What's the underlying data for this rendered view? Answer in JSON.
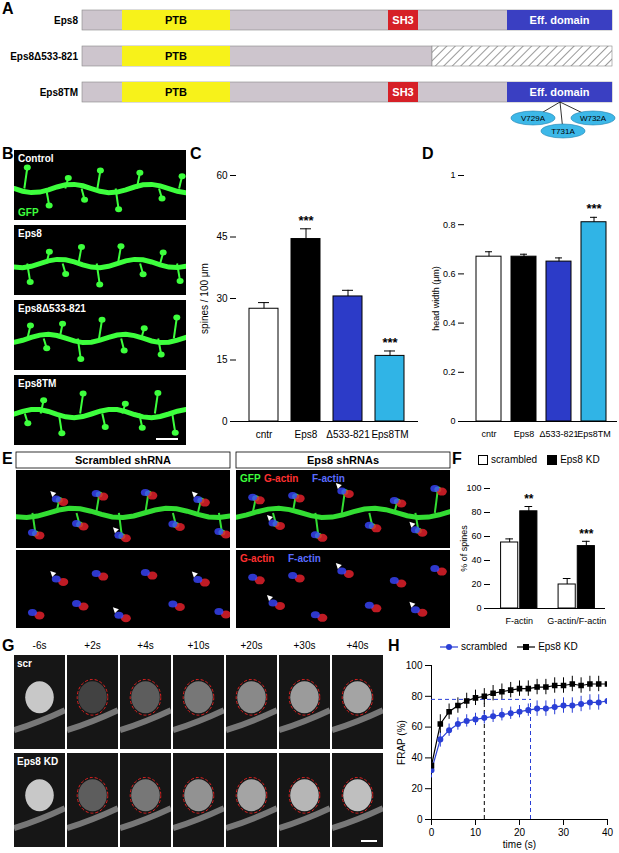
{
  "figure": {
    "A": {
      "label": "A",
      "bar_color": "#cdc5cd",
      "constructs": [
        {
          "name": "Eps8",
          "domains": [
            {
              "label": "PTB",
              "color": "#f7f21a"
            },
            {
              "label": "SH3",
              "color": "#d62027"
            },
            {
              "label": "Eff. domain",
              "color": "#3a3fc2"
            }
          ]
        },
        {
          "name": "Eps8Δ533-821",
          "domains": [
            {
              "label": "PTB",
              "color": "#f7f21a"
            }
          ],
          "deleted": true
        },
        {
          "name": "Eps8TM",
          "domains": [
            {
              "label": "PTB",
              "color": "#f7f21a"
            },
            {
              "label": "SH3",
              "color": "#d62027"
            },
            {
              "label": "Eff. domain",
              "color": "#3a3fc2"
            }
          ],
          "mutations": [
            "V729A",
            "T731A",
            "W732A"
          ],
          "mutation_color": "#3db8e8"
        }
      ]
    },
    "B": {
      "label": "B",
      "images": [
        "Control",
        "Eps8",
        "Eps8Δ533-821",
        "Eps8TM"
      ],
      "channel": {
        "text": "GFP",
        "color": "#3dff3d"
      }
    },
    "E": {
      "label": "E",
      "titles": [
        "Scrambled shRNA",
        "Eps8 shRNAs"
      ],
      "top_channels": [
        {
          "text": "GFP",
          "color": "#3dff3d"
        },
        {
          "text": "G-actin",
          "color": "#ff3030"
        },
        {
          "text": "F-actin",
          "color": "#5a6cff"
        }
      ],
      "bottom_channels": [
        {
          "text": "G-actin",
          "color": "#ff3030"
        },
        {
          "text": "F-actin",
          "color": "#5a6cff"
        }
      ]
    },
    "G": {
      "label": "G",
      "rows": [
        "scr",
        "Eps8 KD"
      ],
      "times": [
        "-6s",
        "+2s",
        "+4s",
        "+10s",
        "+20s",
        "+30s",
        "+40s"
      ]
    }
  },
  "chart_data": [
    {
      "type": "bar",
      "title": "C",
      "categories": [
        "cntr",
        "Eps8",
        "Δ533-821",
        "Eps8TM"
      ],
      "values": [
        27.5,
        44.5,
        30.5,
        16
      ],
      "errors": [
        1.5,
        2.5,
        1.5,
        1.2
      ],
      "colors": [
        "#ffffff",
        "#000000",
        "#2c3bc8",
        "#30b4e6"
      ],
      "significance": [
        null,
        "***",
        null,
        "***"
      ],
      "ylabel": "spines / 100 μm",
      "ylim": [
        0,
        60
      ],
      "yticks": [
        0,
        15,
        30,
        45,
        60
      ]
    },
    {
      "type": "bar",
      "title": "D",
      "categories": [
        "cntr",
        "Eps8",
        "Δ533-821",
        "Eps8TM"
      ],
      "values": [
        0.67,
        0.67,
        0.65,
        0.81
      ],
      "errors": [
        0.02,
        0.01,
        0.015,
        0.02
      ],
      "colors": [
        "#ffffff",
        "#000000",
        "#2c3bc8",
        "#30b4e6"
      ],
      "significance": [
        null,
        null,
        null,
        "***"
      ],
      "ylabel": "head width (μm)",
      "ylim": [
        0,
        1
      ],
      "yticks": [
        0,
        0.2,
        0.4,
        0.6,
        0.8,
        1
      ]
    },
    {
      "type": "bar",
      "title": "F",
      "categories": [
        "F-actin",
        "G-actin/F-actin"
      ],
      "series": [
        {
          "name": "scrambled",
          "color": "#ffffff",
          "values": [
            55,
            20
          ],
          "errors": [
            3,
            5
          ],
          "significance": [
            null,
            null
          ]
        },
        {
          "name": "Eps8 KD",
          "color": "#000000",
          "values": [
            81,
            52
          ],
          "errors": [
            4,
            4
          ],
          "significance": [
            "**",
            "***"
          ]
        }
      ],
      "ylabel": "% of spines",
      "ylim": [
        0,
        100
      ],
      "yticks": [
        0,
        20,
        40,
        60,
        80,
        100
      ],
      "legend": "top"
    },
    {
      "type": "line",
      "title": "H",
      "x": [
        0,
        2,
        4,
        6,
        8,
        10,
        12,
        14,
        16,
        18,
        20,
        22,
        24,
        26,
        28,
        30,
        32,
        34,
        36,
        38,
        40
      ],
      "series": [
        {
          "name": "scrambled",
          "color": "#2a3fd6",
          "marker": "circle",
          "values": [
            32,
            52,
            58,
            62,
            64,
            65,
            66,
            67,
            68,
            69,
            70,
            71,
            72,
            72,
            73,
            74,
            74,
            75,
            76,
            76,
            77
          ],
          "errors": [
            5,
            5,
            4,
            4,
            4,
            4,
            4,
            4,
            4,
            4,
            4,
            4,
            5,
            5,
            5,
            5,
            5,
            5,
            5,
            5,
            5
          ]
        },
        {
          "name": "Eps8 KD",
          "color": "#000000",
          "marker": "square",
          "values": [
            35,
            62,
            70,
            74,
            77,
            79,
            80,
            82,
            83,
            84,
            85,
            85,
            86,
            86,
            87,
            87,
            88,
            87,
            88,
            88,
            88
          ],
          "errors": [
            6,
            6,
            5,
            5,
            5,
            5,
            5,
            5,
            5,
            5,
            5,
            5,
            5,
            5,
            5,
            5,
            5,
            5,
            5,
            5,
            5
          ]
        }
      ],
      "reference_lines": [
        {
          "y": 78,
          "color": "#2a3fd6",
          "line_style": "dashed"
        },
        {
          "x": 12,
          "color": "#000000",
          "line_style": "dashed"
        },
        {
          "x": 22.5,
          "color": "#2a3fd6",
          "line_style": "dashed"
        }
      ],
      "xlabel": "time (s)",
      "ylabel": "FRAP (%)",
      "xlim": [
        0,
        40
      ],
      "ylim": [
        0,
        100
      ],
      "xticks": [
        0,
        10,
        20,
        30,
        40
      ],
      "yticks": [
        0,
        20,
        40,
        60,
        80,
        100
      ],
      "legend": "top"
    }
  ]
}
